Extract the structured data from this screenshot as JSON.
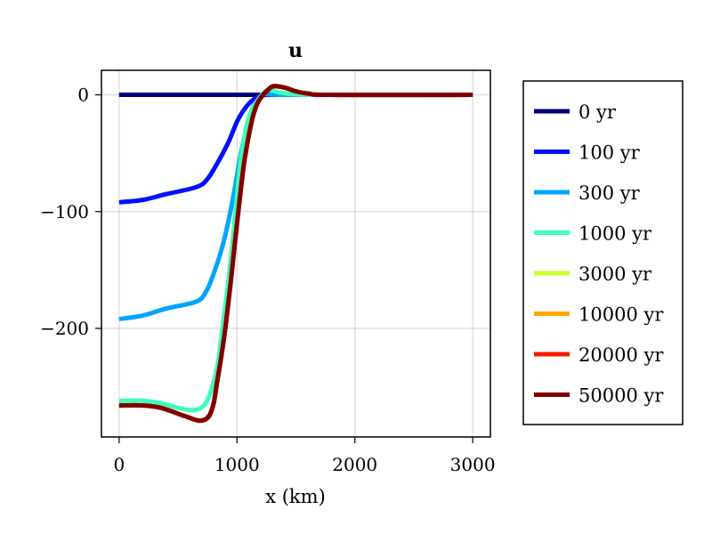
{
  "chart_data": {
    "type": "line",
    "title": "u",
    "xlabel": "x (km)",
    "ylabel": "",
    "xlim": [
      -150,
      3150
    ],
    "ylim": [
      -293,
      21
    ],
    "xticks": [
      0,
      1000,
      2000,
      3000
    ],
    "xtick_labels": [
      "0",
      "1000",
      "2000",
      "3000"
    ],
    "yticks": [
      0,
      -100,
      -200
    ],
    "ytick_labels": [
      "0",
      "−100",
      "−200"
    ],
    "grid": true,
    "legend_placement": "outside-right",
    "series": [
      {
        "name": "0 yr",
        "color": "#00007f",
        "x": [
          0,
          3000
        ],
        "y": [
          0,
          0
        ]
      },
      {
        "name": "100 yr",
        "color": "#0010ff",
        "x": [
          0,
          200,
          400,
          655,
          750,
          853,
          930,
          1005,
          1080,
          1156,
          1250,
          1400,
          3000
        ],
        "y": [
          -92,
          -90,
          -85,
          -79,
          -72,
          -55,
          -40,
          -22,
          -10,
          -3,
          0,
          0,
          0
        ]
      },
      {
        "name": "300 yr",
        "color": "#00a4ff",
        "x": [
          0,
          200,
          400,
          655,
          740,
          806,
          870,
          932,
          985,
          1033,
          1090,
          1134,
          1200,
          1260,
          1400,
          3000
        ],
        "y": [
          -192,
          -189,
          -183,
          -177,
          -168,
          -152,
          -132,
          -106,
          -78,
          -50,
          -25,
          -11,
          -2,
          2,
          0,
          0
        ]
      },
      {
        "name": "1000 yr",
        "color": "#3dffba",
        "x": [
          0,
          200,
          353,
          500,
          630,
          720,
          781,
          840,
          882,
          920,
          958,
          995,
          1033,
          1070,
          1109,
          1180,
          1260,
          1361,
          1500,
          1800,
          3000
        ],
        "y": [
          -262,
          -262,
          -264,
          -268,
          -270,
          -266,
          -253,
          -228,
          -195,
          -165,
          -131,
          -92,
          -55,
          -32,
          -17,
          -4,
          4,
          2,
          0.5,
          0,
          0
        ]
      },
      {
        "name": "3000 yr",
        "color": "#caff2d",
        "x": [
          0,
          200,
          353,
          554,
          680,
          756,
          800,
          831,
          870,
          907,
          945,
          983,
          1020,
          1058,
          1096,
          1134,
          1170,
          1209,
          1260,
          1310,
          1411,
          1500,
          1610,
          1800,
          3000
        ],
        "y": [
          -266,
          -266,
          -268,
          -275,
          -279,
          -276,
          -265,
          -246,
          -222,
          -195,
          -162,
          -126,
          -92,
          -60,
          -37,
          -19,
          -8,
          -1.5,
          4,
          7.4,
          6,
          3,
          1,
          0,
          0
        ]
      },
      {
        "name": "10000 yr",
        "color": "#ffa700",
        "x": [
          0,
          200,
          353,
          554,
          680,
          756,
          800,
          831,
          870,
          907,
          945,
          983,
          1020,
          1058,
          1096,
          1134,
          1170,
          1209,
          1260,
          1310,
          1411,
          1500,
          1610,
          1800,
          3000
        ],
        "y": [
          -266,
          -266,
          -268,
          -275,
          -279,
          -276,
          -265,
          -246,
          -222,
          -195,
          -162,
          -126,
          -92,
          -60,
          -37,
          -19,
          -8,
          -1.5,
          4,
          7.4,
          6,
          3,
          1,
          0,
          0
        ]
      },
      {
        "name": "20000 yr",
        "color": "#ff1800",
        "x": [
          0,
          200,
          353,
          554,
          680,
          756,
          800,
          831,
          870,
          907,
          945,
          983,
          1020,
          1058,
          1096,
          1134,
          1170,
          1209,
          1260,
          1310,
          1411,
          1500,
          1610,
          1800,
          3000
        ],
        "y": [
          -266,
          -266,
          -268,
          -275,
          -279,
          -276,
          -265,
          -246,
          -222,
          -195,
          -162,
          -126,
          -92,
          -60,
          -37,
          -19,
          -8,
          -1.5,
          4,
          7.4,
          6,
          3,
          1,
          0,
          0
        ]
      },
      {
        "name": "50000 yr",
        "color": "#7f0000",
        "x": [
          0,
          200,
          353,
          554,
          680,
          756,
          800,
          831,
          870,
          907,
          945,
          983,
          1020,
          1058,
          1096,
          1134,
          1170,
          1209,
          1260,
          1310,
          1411,
          1500,
          1610,
          1800,
          3000
        ],
        "y": [
          -266,
          -266,
          -268,
          -275,
          -279,
          -276,
          -265,
          -246,
          -222,
          -195,
          -162,
          -126,
          -92,
          -60,
          -37,
          -19,
          -8,
          -1.5,
          4,
          7.4,
          6,
          3,
          1,
          0,
          0
        ]
      }
    ]
  }
}
